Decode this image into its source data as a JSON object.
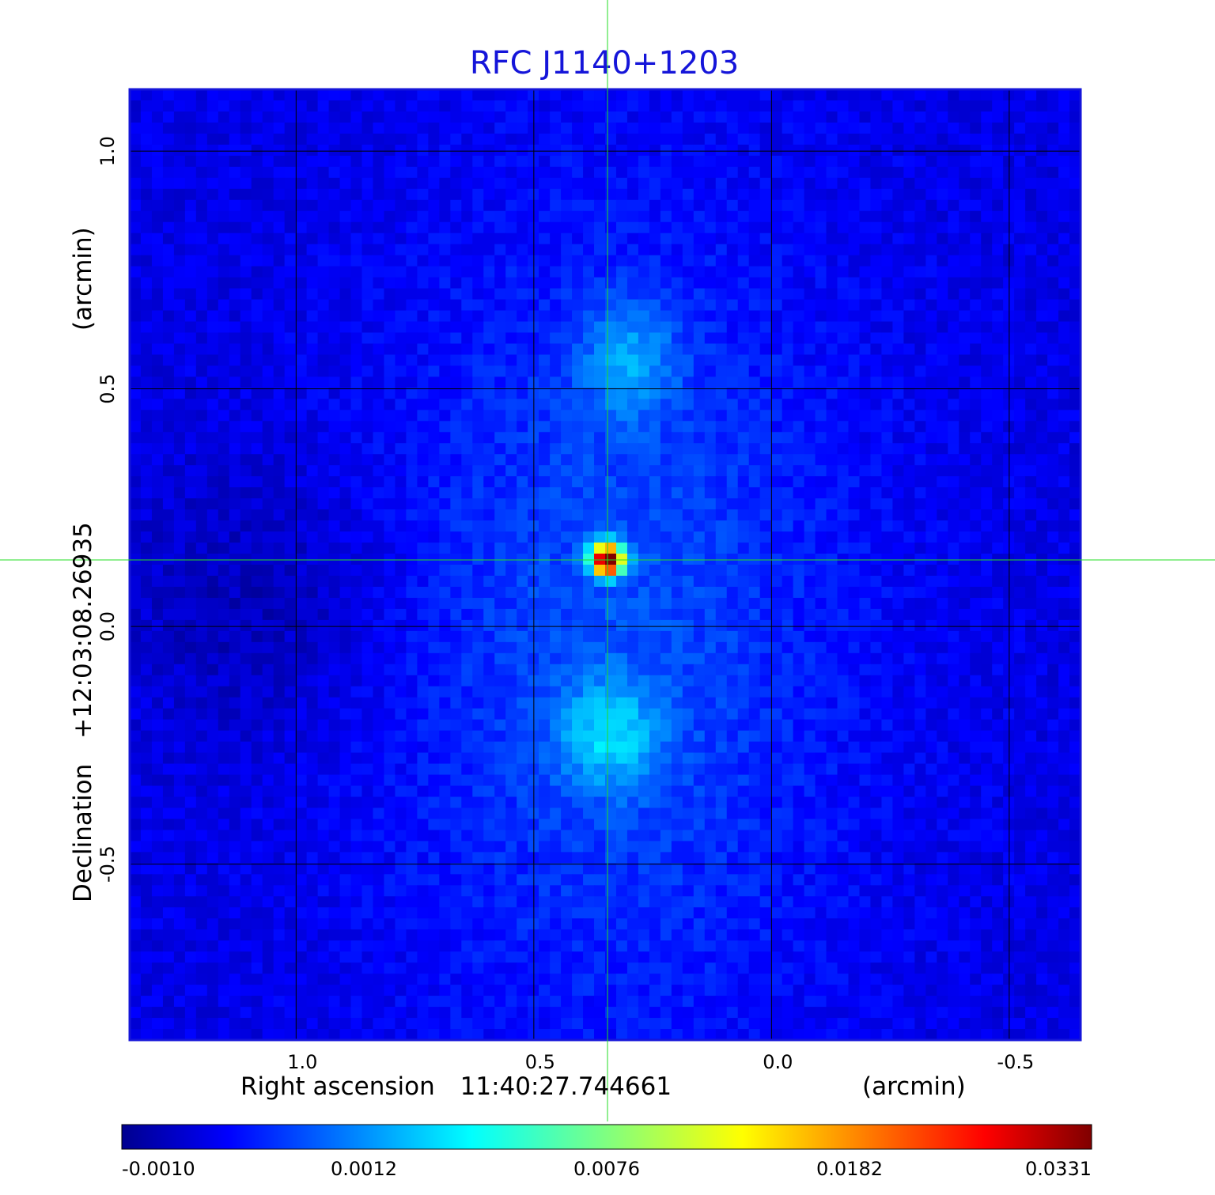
{
  "chart_data": {
    "type": "heatmap",
    "title": "RFC J1140+1203",
    "xlabel": {
      "prefix": "Right ascension",
      "value": "11:40:27.744661",
      "unit": "(arcmin)"
    },
    "ylabel": {
      "prefix": "Declination",
      "value": "+12:03:08.26935",
      "unit": "(arcmin)"
    },
    "x_ticks": [
      "1.0",
      "0.5",
      "0.0",
      "-0.5"
    ],
    "x_tick_values": [
      1.0,
      0.5,
      0.0,
      -0.5
    ],
    "y_ticks": [
      "1.0",
      "0.5",
      "0.0",
      "-0.5"
    ],
    "y_tick_values": [
      1.0,
      0.5,
      0.0,
      -0.5
    ],
    "xlim": [
      1.35,
      -0.65
    ],
    "ylim": [
      -0.87,
      1.13
    ],
    "grid": true,
    "crosshair": {
      "x": 0.345,
      "y": 0.14
    },
    "colormap": "jet",
    "colorbar": {
      "ticks": [
        "-0.0010",
        "0.0012",
        "0.0076",
        "0.0182",
        "0.0331"
      ],
      "values": [
        -0.001,
        0.0012,
        0.0076,
        0.0182,
        0.0331
      ],
      "placement": "bottom"
    },
    "peak": {
      "x": 0.345,
      "y": 0.14,
      "value": 0.0331
    },
    "lobes": [
      {
        "x": 0.34,
        "y": -0.23,
        "value": 0.0062
      },
      {
        "x": 0.3,
        "y": 0.56,
        "value": 0.0052
      }
    ]
  },
  "colors": {
    "title": "#1515d9",
    "frame": "#1515d9",
    "grid": "#000000",
    "crosshair": "#22dd22",
    "background": "#1a4ef2"
  }
}
